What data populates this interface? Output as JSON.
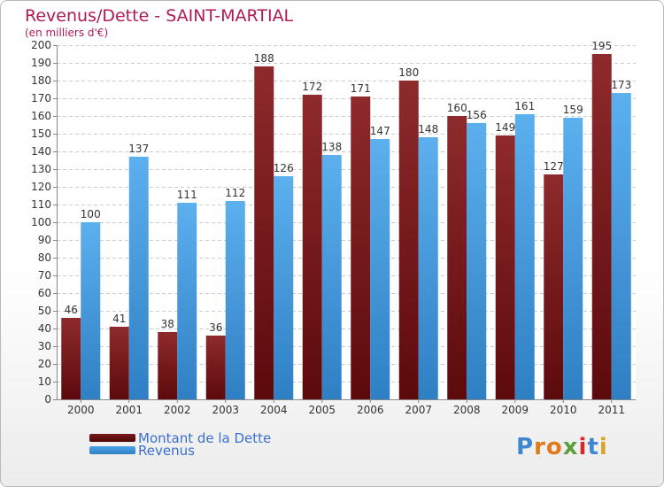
{
  "header": {
    "title": "Revenus/Dette - SAINT-MARTIAL",
    "subtitle": "(en milliers d'€)"
  },
  "colors": {
    "debt": "#7a1a1c",
    "revenue": "#4da3e6",
    "title": "#b01a54",
    "legend_text": "#3a6fd0"
  },
  "legend": {
    "debt_label": "Montant de la Dette",
    "revenue_label": "Revenus"
  },
  "brand": {
    "logo_text": "Proxiti"
  },
  "chart_data": {
    "type": "bar",
    "title": "Revenus/Dette - SAINT-MARTIAL",
    "subtitle": "(en milliers d'€)",
    "xlabel": "",
    "ylabel": "",
    "ylim": [
      0,
      200
    ],
    "ytick_step": 10,
    "grid": true,
    "legend_position": "bottom-left",
    "categories": [
      "2000",
      "2001",
      "2002",
      "2003",
      "2004",
      "2005",
      "2006",
      "2007",
      "2008",
      "2009",
      "2010",
      "2011"
    ],
    "series": [
      {
        "name": "Montant de la Dette",
        "values": [
          46,
          41,
          38,
          36,
          188,
          172,
          171,
          180,
          160,
          149,
          127,
          195
        ]
      },
      {
        "name": "Revenus",
        "values": [
          100,
          137,
          111,
          112,
          126,
          138,
          147,
          148,
          156,
          161,
          159,
          173
        ]
      }
    ]
  }
}
